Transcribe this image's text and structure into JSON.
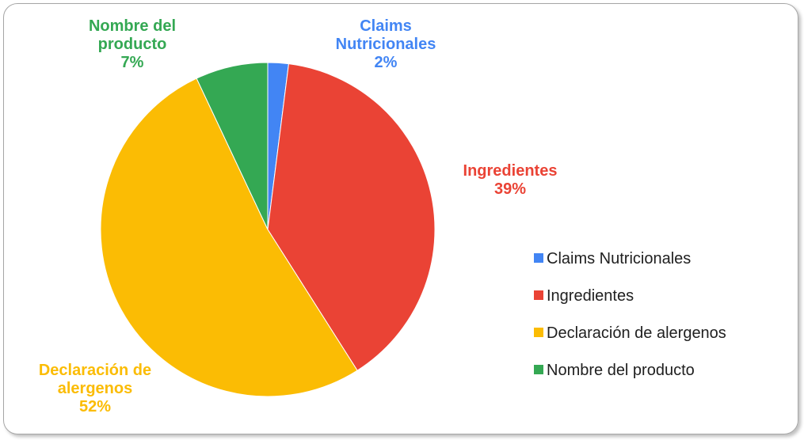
{
  "chart_data": {
    "type": "pie",
    "categories": [
      "Claims Nutricionales",
      "Ingredientes",
      "Declaración de alergenos",
      "Nombre del producto"
    ],
    "values": [
      2,
      39,
      52,
      7
    ],
    "value_labels": [
      "2%",
      "39%",
      "52%",
      "7%"
    ],
    "colors": [
      "#4285f4",
      "#ea4335",
      "#fbbc04",
      "#34a853"
    ],
    "legend": "right"
  }
}
